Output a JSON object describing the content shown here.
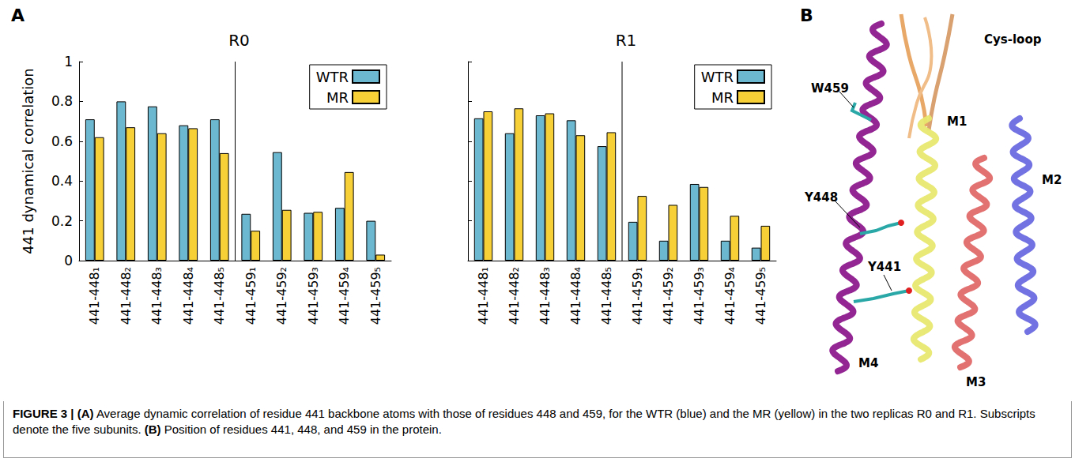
{
  "chart_data": [
    {
      "type": "bar",
      "title": "R0",
      "ylabel": "441 dynamical correlation",
      "categories": [
        "441-448₁",
        "441-448₂",
        "441-448₃",
        "441-448₄",
        "441-448₅",
        "441-459₁",
        "441-459₂",
        "441-459₃",
        "441-459₄",
        "441-459₅"
      ],
      "series": [
        {
          "name": "WTR",
          "color": "#6bb8d0",
          "values": [
            0.71,
            0.8,
            0.775,
            0.68,
            0.71,
            0.235,
            0.545,
            0.24,
            0.265,
            0.2
          ]
        },
        {
          "name": "MR",
          "color": "#f7d038",
          "values": [
            0.62,
            0.67,
            0.64,
            0.665,
            0.54,
            0.15,
            0.255,
            0.245,
            0.445,
            0.03
          ]
        }
      ],
      "ylim": [
        0,
        1
      ],
      "yticks": [
        0,
        0.2,
        0.4,
        0.6,
        0.8,
        1
      ],
      "grid": false,
      "legend": "upper right"
    },
    {
      "type": "bar",
      "title": "R1",
      "categories": [
        "441-448₁",
        "441-448₂",
        "441-448₃",
        "441-448₄",
        "441-448₅",
        "441-459₁",
        "441-459₂",
        "441-459₃",
        "441-459₄",
        "441-459₅"
      ],
      "series": [
        {
          "name": "WTR",
          "color": "#6bb8d0",
          "values": [
            0.715,
            0.64,
            0.73,
            0.705,
            0.575,
            0.195,
            0.1,
            0.385,
            0.1,
            0.065
          ]
        },
        {
          "name": "MR",
          "color": "#f7d038",
          "values": [
            0.75,
            0.765,
            0.74,
            0.63,
            0.645,
            0.325,
            0.28,
            0.37,
            0.225,
            0.175
          ]
        }
      ],
      "ylim": [
        0,
        1
      ],
      "yticks": [
        0,
        0.2,
        0.4,
        0.6,
        0.8,
        1
      ],
      "grid": false,
      "legend": "upper right",
      "tick_labels": "x"
    }
  ],
  "figure": {
    "panel_labels": [
      "A",
      "B"
    ],
    "structure_labels": [
      "Cys-loop",
      "W459",
      "Y448",
      "Y441",
      "M1",
      "M2",
      "M3",
      "M4"
    ],
    "caption": [
      {
        "text": "FIGURE 3 | ",
        "bold": true
      },
      {
        "text": "(A)",
        "bold": true
      },
      {
        "text": " Average dynamic correlation of residue 441 backbone atoms with those of residues 448 and 459, for the WTR (blue) and the MR (yellow) in the two replicas R0 and R1. Subscripts denote the five subunits. ",
        "bold": false
      },
      {
        "text": "(B)",
        "bold": true
      },
      {
        "text": " Position of residues 441, 448, and 459 in the protein.",
        "bold": false
      }
    ]
  }
}
